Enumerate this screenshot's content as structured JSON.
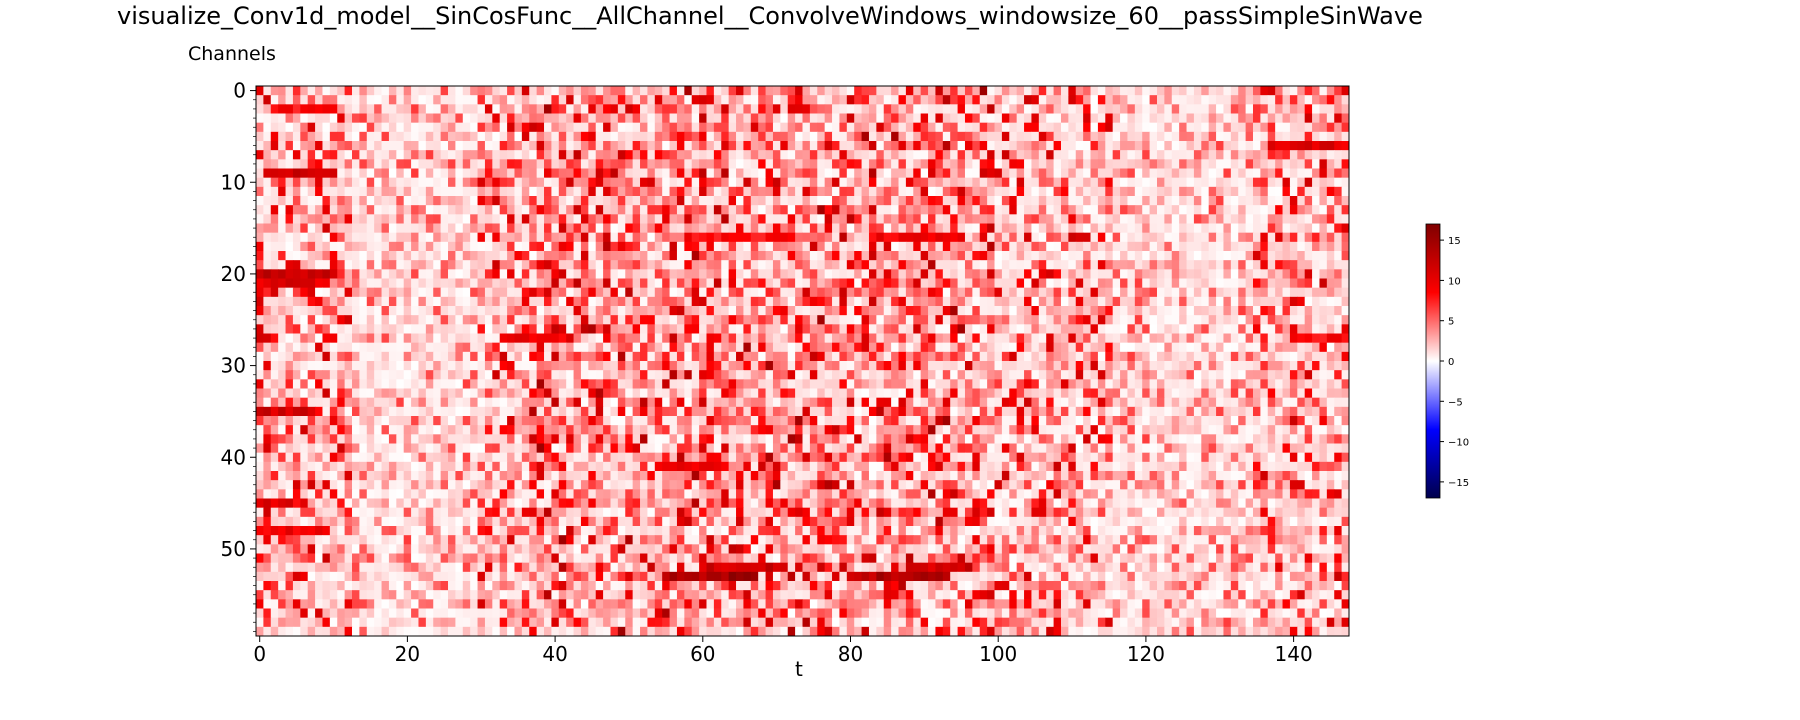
{
  "chart_data": {
    "type": "heatmap",
    "title": "visualize_Conv1d_model__SinCosFunc__AllChannel__ConvolveWindows_windowsize_60__passSimpleSinWave",
    "xlabel": "t",
    "ylabel": "Channels",
    "x_range": [
      0,
      148
    ],
    "y_range": [
      0,
      59
    ],
    "x_ticks": [
      "0",
      "20",
      "40",
      "60",
      "80",
      "100",
      "120",
      "140"
    ],
    "y_ticks": [
      "0",
      "10",
      "20",
      "30",
      "40",
      "50"
    ],
    "y_inverted": true,
    "colormap": "seismic",
    "color_range": [
      -17,
      17
    ],
    "colorbar_ticks": [
      "15",
      "10",
      "5",
      "0",
      "−5",
      "−10",
      "−15"
    ],
    "n_channels": 60,
    "n_timesteps": 148,
    "strong_rows": [
      {
        "channel": 2,
        "t": [
          2,
          11
        ],
        "value": 9
      },
      {
        "channel": 6,
        "t": [
          138,
          148
        ],
        "value": 11
      },
      {
        "channel": 9,
        "t": [
          1,
          11
        ],
        "value": 12
      },
      {
        "channel": 16,
        "t": [
          58,
          72
        ],
        "value": 9
      },
      {
        "channel": 16,
        "t": [
          83,
          96
        ],
        "value": 10
      },
      {
        "channel": 20,
        "t": [
          0,
          11
        ],
        "value": 13
      },
      {
        "channel": 21,
        "t": [
          0,
          10
        ],
        "value": 11
      },
      {
        "channel": 27,
        "t": [
          35,
          43
        ],
        "value": 10
      },
      {
        "channel": 27,
        "t": [
          140,
          148
        ],
        "value": 9
      },
      {
        "channel": 35,
        "t": [
          0,
          8
        ],
        "value": 12
      },
      {
        "channel": 41,
        "t": [
          54,
          64
        ],
        "value": 10
      },
      {
        "channel": 45,
        "t": [
          0,
          5
        ],
        "value": 11
      },
      {
        "channel": 48,
        "t": [
          0,
          10
        ],
        "value": 10
      },
      {
        "channel": 52,
        "t": [
          60,
          72
        ],
        "value": 12
      },
      {
        "channel": 52,
        "t": [
          88,
          97
        ],
        "value": 12
      },
      {
        "channel": 53,
        "t": [
          55,
          68
        ],
        "value": 15
      },
      {
        "channel": 53,
        "t": [
          80,
          93
        ],
        "value": 14
      }
    ]
  }
}
